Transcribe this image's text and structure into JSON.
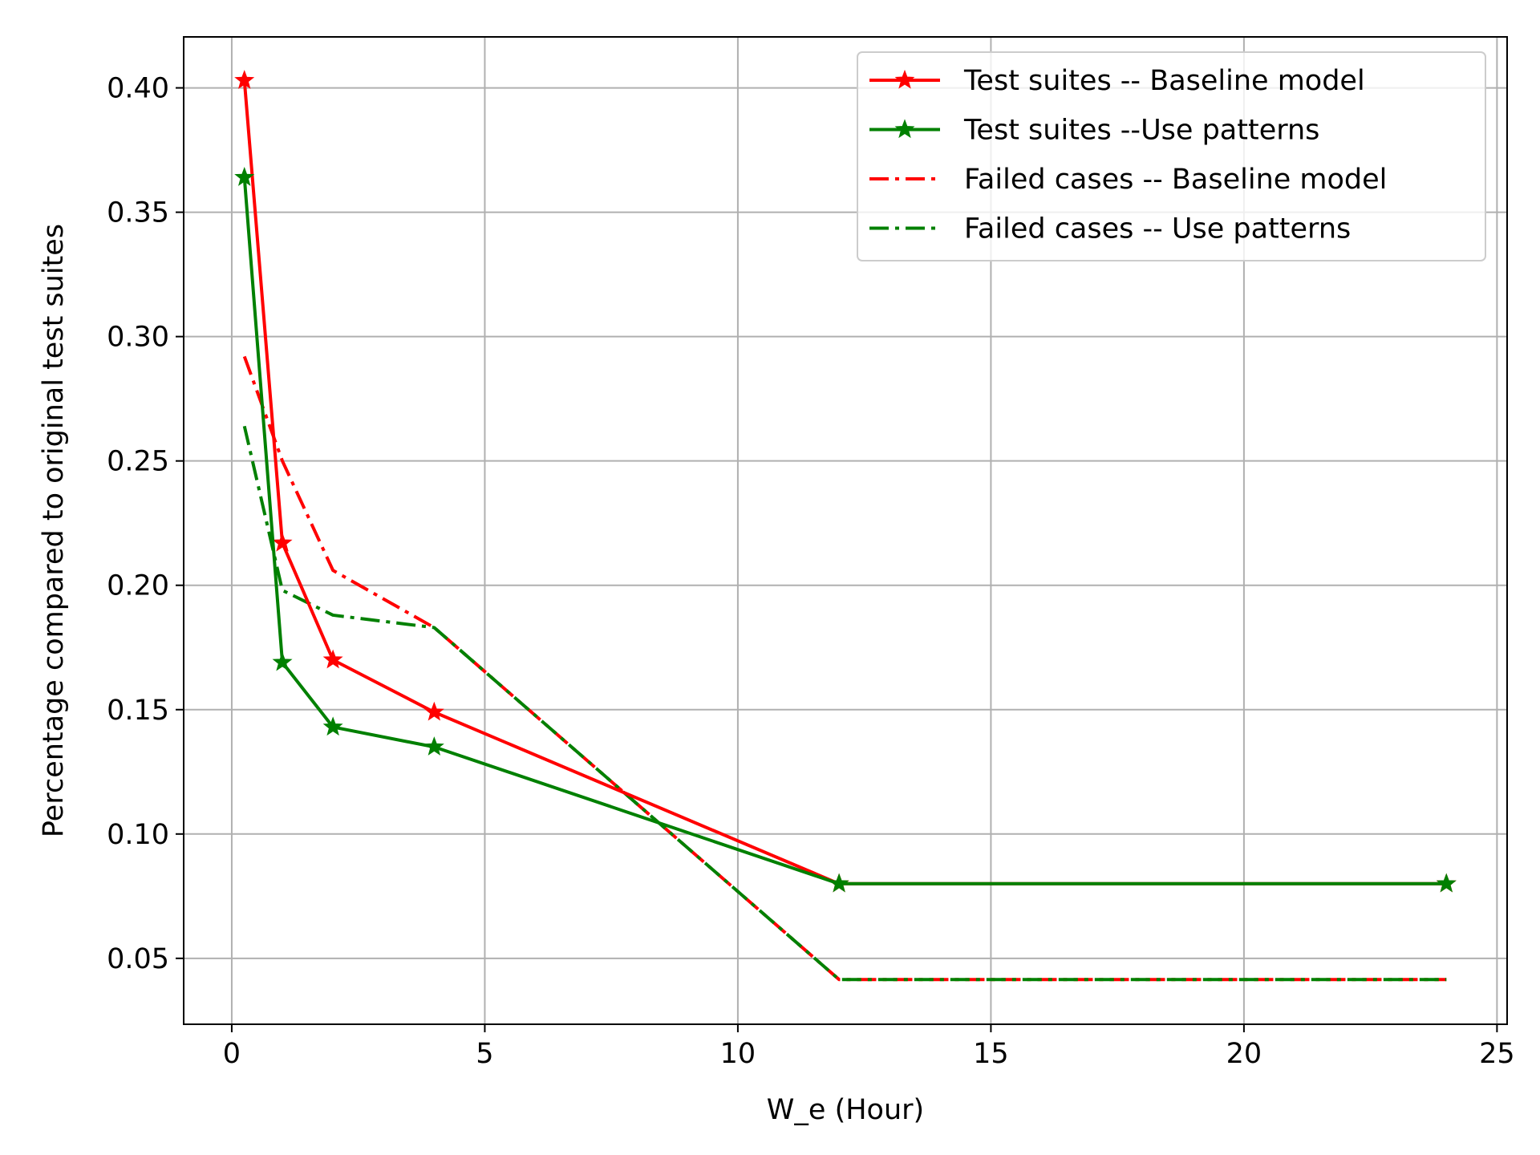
{
  "chart_data": {
    "type": "line",
    "xlabel": "W_e (Hour)",
    "ylabel": "Percentage compared to original test suites",
    "xlim": [
      -0.95,
      25.2
    ],
    "ylim": [
      0.0235,
      0.4205
    ],
    "xticks": [
      0,
      5,
      10,
      15,
      20,
      25
    ],
    "yticks": [
      0.05,
      0.1,
      0.15,
      0.2,
      0.25,
      0.3,
      0.35,
      0.4
    ],
    "xtick_labels": [
      "0",
      "5",
      "10",
      "15",
      "20",
      "25"
    ],
    "ytick_labels": [
      "0.05",
      "0.10",
      "0.15",
      "0.20",
      "0.25",
      "0.30",
      "0.35",
      "0.40"
    ],
    "grid": true,
    "legend_position": "top-right",
    "series": [
      {
        "name": "Test suites -- Baseline model",
        "color": "#ff0000",
        "style": "solid",
        "marker": "star",
        "x": [
          0.25,
          1,
          2,
          4,
          12,
          24
        ],
        "y": [
          0.403,
          0.217,
          0.17,
          0.149,
          0.08,
          0.08
        ]
      },
      {
        "name": "Test suites --Use patterns",
        "color": "#008000",
        "style": "solid",
        "marker": "star",
        "x": [
          0.25,
          1,
          2,
          4,
          12,
          24
        ],
        "y": [
          0.364,
          0.169,
          0.143,
          0.135,
          0.08,
          0.08
        ]
      },
      {
        "name": "Failed cases -- Baseline model",
        "color": "#ff0000",
        "style": "dashdot",
        "marker": "none",
        "x": [
          0.25,
          1,
          2,
          4,
          12,
          24
        ],
        "y": [
          0.292,
          0.25,
          0.206,
          0.183,
          0.0415,
          0.0415
        ]
      },
      {
        "name": "Failed cases -- Use patterns",
        "color": "#008000",
        "style": "dashdot",
        "marker": "none",
        "x": [
          0.25,
          1,
          2,
          4,
          12,
          24
        ],
        "y": [
          0.264,
          0.198,
          0.188,
          0.183,
          0.0415,
          0.0415
        ]
      }
    ]
  }
}
